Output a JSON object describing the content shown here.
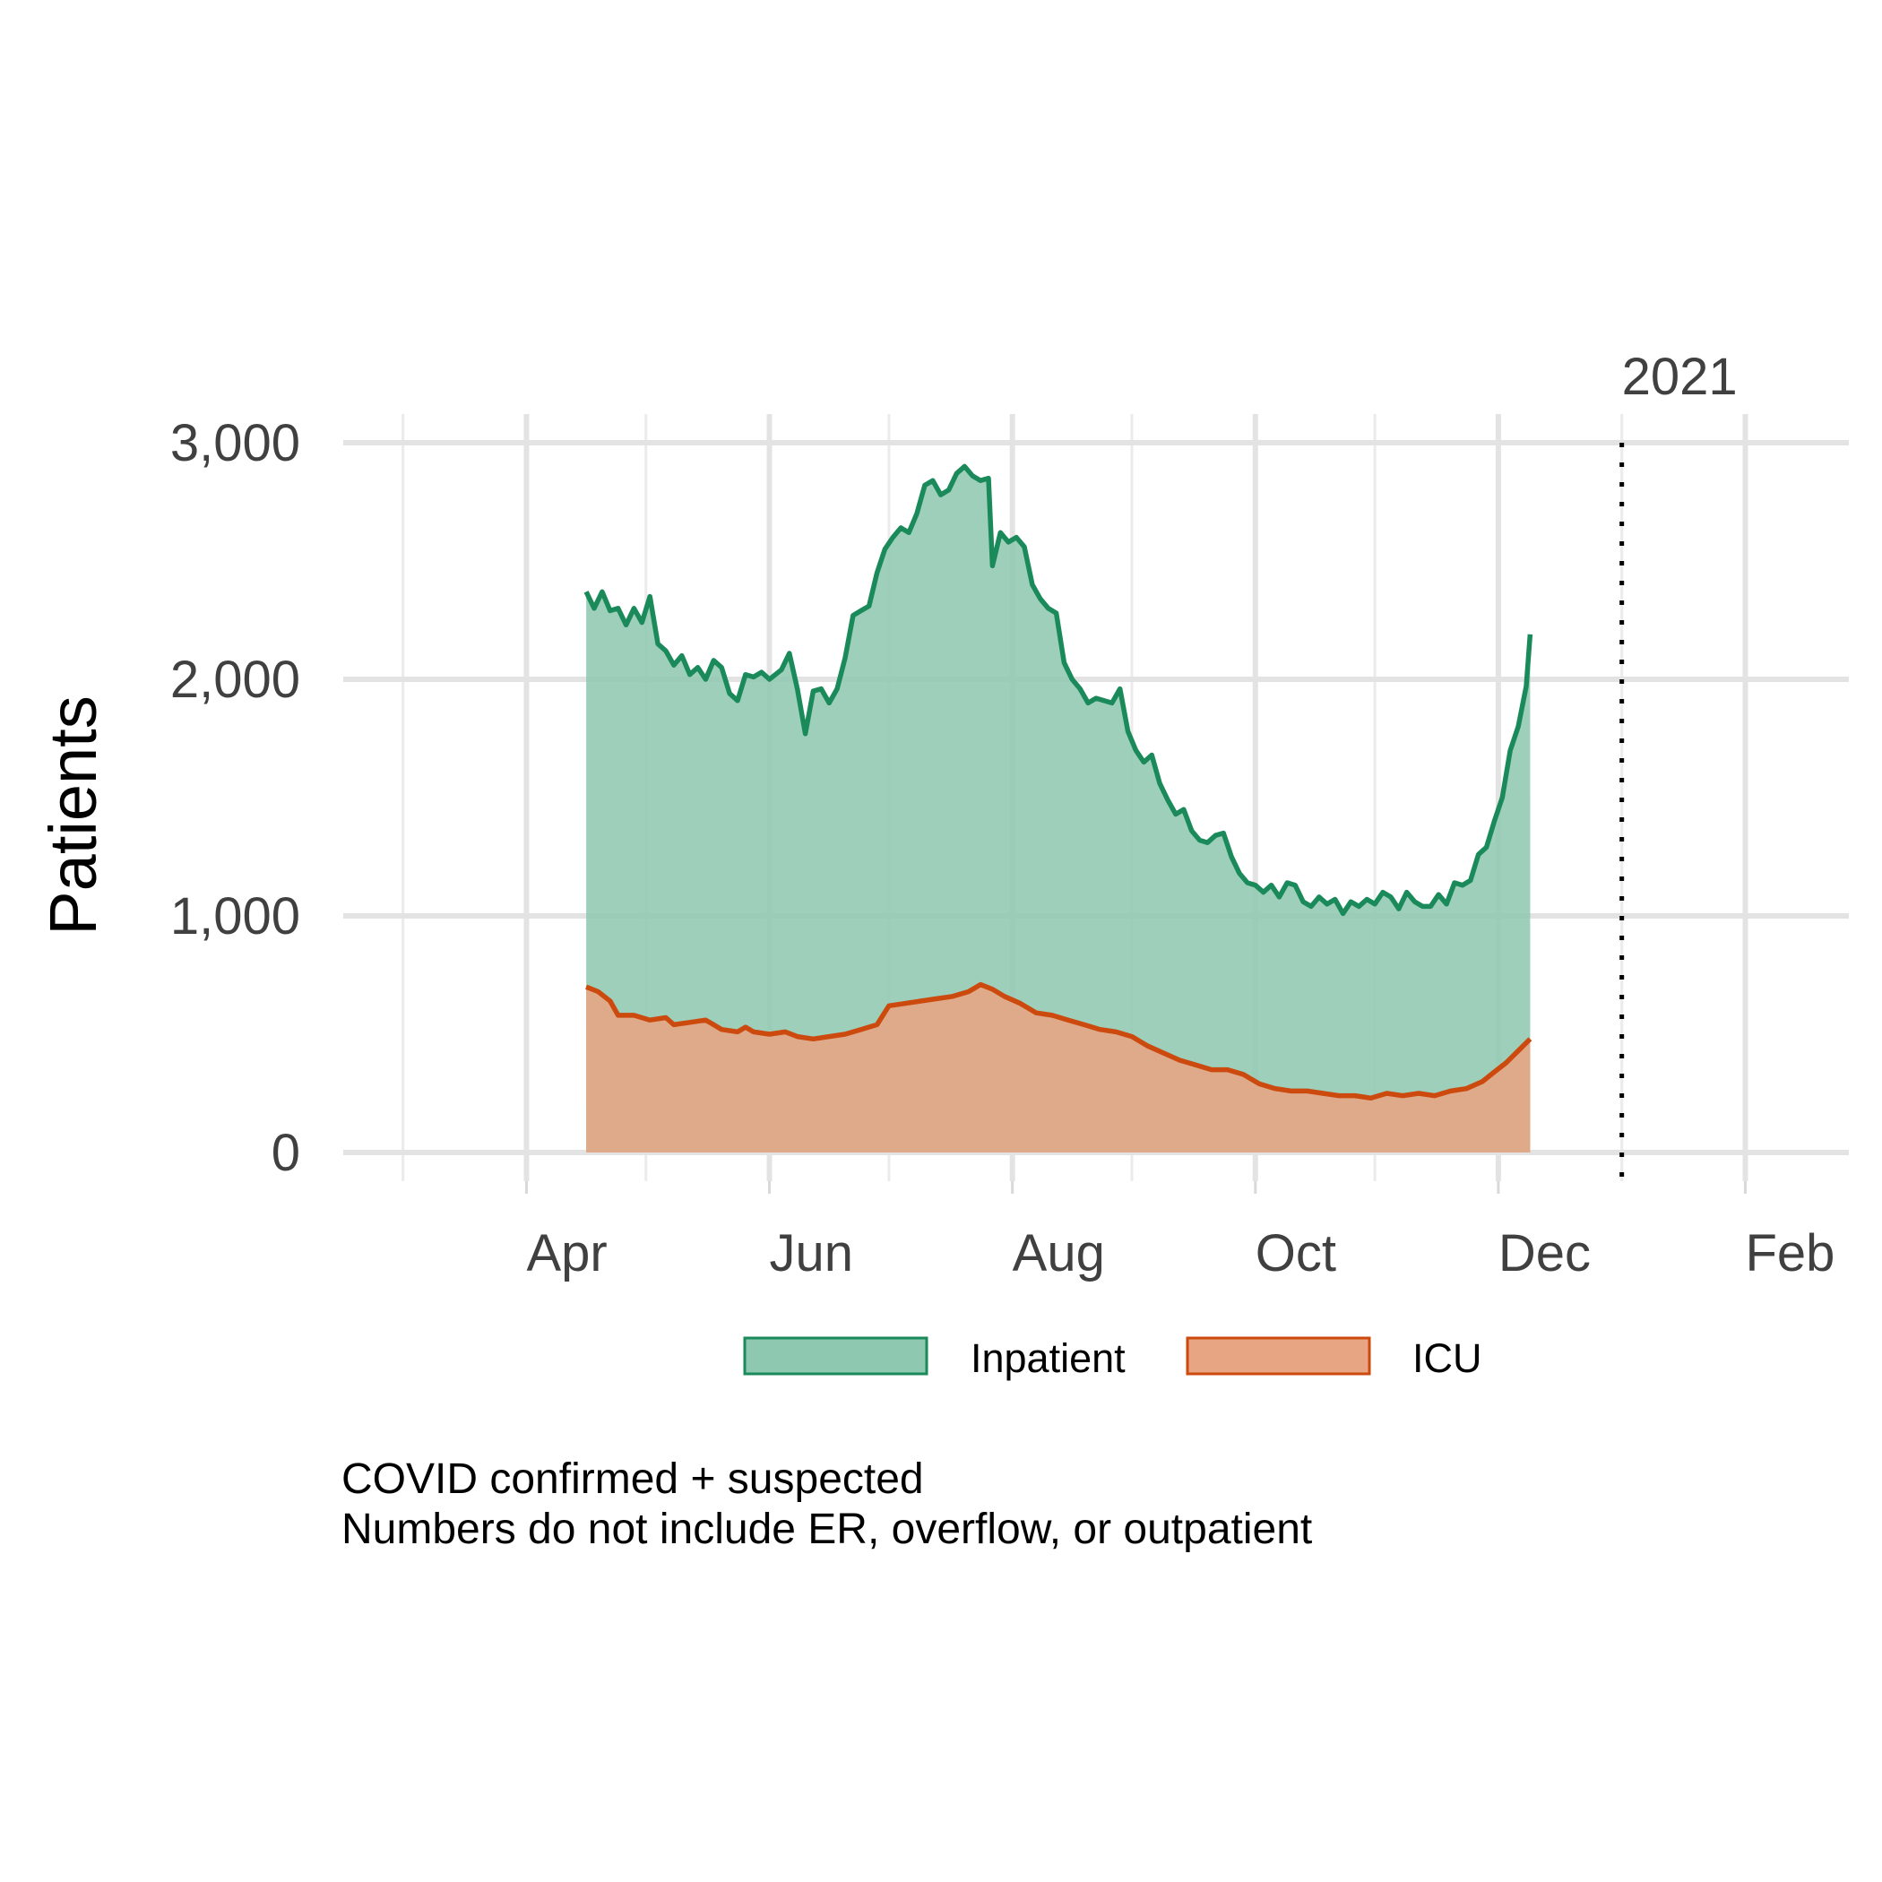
{
  "chart_data": {
    "type": "area",
    "ylabel": "Patients",
    "yticks": [
      0,
      1000,
      2000,
      3000
    ],
    "ytick_labels": [
      "0",
      "1,000",
      "2,000",
      "3,000"
    ],
    "ylim": [
      0,
      3000
    ],
    "xlim": [
      "2020-02-15",
      "2021-02-27"
    ],
    "xtick_dates": [
      "2020-04-01",
      "2020-06-01",
      "2020-08-01",
      "2020-10-01",
      "2020-12-01",
      "2021-02-01"
    ],
    "xtick_labels": [
      "Apr",
      "Jun",
      "Aug",
      "Oct",
      "Dec",
      "Feb"
    ],
    "grid": true,
    "annotation": {
      "label": "2021",
      "date": "2021-01-01",
      "style": "dotted-vertical-line"
    },
    "legend": {
      "position": "bottom"
    },
    "series": [
      {
        "name": "Inpatient",
        "color": "#1b8a5a",
        "fill": "#8fc8b0",
        "points": [
          [
            "2020-04-16",
            2370
          ],
          [
            "2020-04-18",
            2300
          ],
          [
            "2020-04-20",
            2370
          ],
          [
            "2020-04-22",
            2290
          ],
          [
            "2020-04-24",
            2300
          ],
          [
            "2020-04-26",
            2230
          ],
          [
            "2020-04-28",
            2300
          ],
          [
            "2020-04-30",
            2240
          ],
          [
            "2020-05-02",
            2350
          ],
          [
            "2020-05-04",
            2150
          ],
          [
            "2020-05-06",
            2120
          ],
          [
            "2020-05-08",
            2060
          ],
          [
            "2020-05-10",
            2100
          ],
          [
            "2020-05-12",
            2020
          ],
          [
            "2020-05-14",
            2050
          ],
          [
            "2020-05-16",
            2000
          ],
          [
            "2020-05-18",
            2080
          ],
          [
            "2020-05-20",
            2050
          ],
          [
            "2020-05-22",
            1940
          ],
          [
            "2020-05-24",
            1910
          ],
          [
            "2020-05-26",
            2020
          ],
          [
            "2020-05-28",
            2010
          ],
          [
            "2020-05-30",
            2030
          ],
          [
            "2020-06-01",
            2000
          ],
          [
            "2020-06-04",
            2040
          ],
          [
            "2020-06-06",
            2110
          ],
          [
            "2020-06-08",
            1960
          ],
          [
            "2020-06-10",
            1770
          ],
          [
            "2020-06-12",
            1950
          ],
          [
            "2020-06-14",
            1960
          ],
          [
            "2020-06-16",
            1900
          ],
          [
            "2020-06-18",
            1960
          ],
          [
            "2020-06-20",
            2090
          ],
          [
            "2020-06-22",
            2270
          ],
          [
            "2020-06-24",
            2290
          ],
          [
            "2020-06-26",
            2310
          ],
          [
            "2020-06-28",
            2450
          ],
          [
            "2020-06-30",
            2550
          ],
          [
            "2020-07-02",
            2600
          ],
          [
            "2020-07-04",
            2640
          ],
          [
            "2020-07-06",
            2620
          ],
          [
            "2020-07-08",
            2700
          ],
          [
            "2020-07-10",
            2820
          ],
          [
            "2020-07-12",
            2840
          ],
          [
            "2020-07-14",
            2780
          ],
          [
            "2020-07-16",
            2800
          ],
          [
            "2020-07-18",
            2870
          ],
          [
            "2020-07-20",
            2900
          ],
          [
            "2020-07-22",
            2860
          ],
          [
            "2020-07-24",
            2840
          ],
          [
            "2020-07-26",
            2850
          ],
          [
            "2020-07-27",
            2480
          ],
          [
            "2020-07-29",
            2620
          ],
          [
            "2020-07-31",
            2580
          ],
          [
            "2020-08-02",
            2600
          ],
          [
            "2020-08-04",
            2560
          ],
          [
            "2020-08-06",
            2400
          ],
          [
            "2020-08-08",
            2340
          ],
          [
            "2020-08-10",
            2300
          ],
          [
            "2020-08-12",
            2280
          ],
          [
            "2020-08-14",
            2070
          ],
          [
            "2020-08-16",
            2000
          ],
          [
            "2020-08-18",
            1960
          ],
          [
            "2020-08-20",
            1900
          ],
          [
            "2020-08-22",
            1920
          ],
          [
            "2020-08-24",
            1910
          ],
          [
            "2020-08-26",
            1900
          ],
          [
            "2020-08-28",
            1960
          ],
          [
            "2020-08-30",
            1780
          ],
          [
            "2020-09-01",
            1700
          ],
          [
            "2020-09-03",
            1650
          ],
          [
            "2020-09-05",
            1680
          ],
          [
            "2020-09-07",
            1560
          ],
          [
            "2020-09-09",
            1490
          ],
          [
            "2020-09-11",
            1430
          ],
          [
            "2020-09-13",
            1450
          ],
          [
            "2020-09-15",
            1360
          ],
          [
            "2020-09-17",
            1320
          ],
          [
            "2020-09-19",
            1310
          ],
          [
            "2020-09-21",
            1340
          ],
          [
            "2020-09-23",
            1350
          ],
          [
            "2020-09-25",
            1250
          ],
          [
            "2020-09-27",
            1180
          ],
          [
            "2020-09-29",
            1140
          ],
          [
            "2020-10-01",
            1130
          ],
          [
            "2020-10-03",
            1100
          ],
          [
            "2020-10-05",
            1130
          ],
          [
            "2020-10-07",
            1080
          ],
          [
            "2020-10-09",
            1140
          ],
          [
            "2020-10-11",
            1130
          ],
          [
            "2020-10-13",
            1060
          ],
          [
            "2020-10-15",
            1040
          ],
          [
            "2020-10-17",
            1080
          ],
          [
            "2020-10-19",
            1050
          ],
          [
            "2020-10-21",
            1070
          ],
          [
            "2020-10-23",
            1010
          ],
          [
            "2020-10-25",
            1060
          ],
          [
            "2020-10-27",
            1040
          ],
          [
            "2020-10-29",
            1070
          ],
          [
            "2020-10-31",
            1050
          ],
          [
            "2020-11-02",
            1100
          ],
          [
            "2020-11-04",
            1080
          ],
          [
            "2020-11-06",
            1030
          ],
          [
            "2020-11-08",
            1100
          ],
          [
            "2020-11-10",
            1060
          ],
          [
            "2020-11-12",
            1040
          ],
          [
            "2020-11-14",
            1040
          ],
          [
            "2020-11-16",
            1090
          ],
          [
            "2020-11-18",
            1050
          ],
          [
            "2020-11-20",
            1140
          ],
          [
            "2020-11-22",
            1130
          ],
          [
            "2020-11-24",
            1150
          ],
          [
            "2020-11-26",
            1260
          ],
          [
            "2020-11-28",
            1290
          ],
          [
            "2020-11-30",
            1400
          ],
          [
            "2020-12-02",
            1500
          ],
          [
            "2020-12-04",
            1700
          ],
          [
            "2020-12-06",
            1800
          ],
          [
            "2020-12-08",
            1970
          ],
          [
            "2020-12-09",
            2190
          ]
        ]
      },
      {
        "name": "ICU",
        "color": "#cc4a0e",
        "fill": "#e7a583",
        "points": [
          [
            "2020-04-16",
            700
          ],
          [
            "2020-04-19",
            680
          ],
          [
            "2020-04-22",
            640
          ],
          [
            "2020-04-24",
            580
          ],
          [
            "2020-04-28",
            580
          ],
          [
            "2020-05-02",
            560
          ],
          [
            "2020-05-06",
            570
          ],
          [
            "2020-05-08",
            540
          ],
          [
            "2020-05-12",
            550
          ],
          [
            "2020-05-16",
            560
          ],
          [
            "2020-05-18",
            540
          ],
          [
            "2020-05-20",
            520
          ],
          [
            "2020-05-24",
            510
          ],
          [
            "2020-05-26",
            530
          ],
          [
            "2020-05-28",
            510
          ],
          [
            "2020-06-01",
            500
          ],
          [
            "2020-06-05",
            510
          ],
          [
            "2020-06-08",
            490
          ],
          [
            "2020-06-12",
            480
          ],
          [
            "2020-06-16",
            490
          ],
          [
            "2020-06-20",
            500
          ],
          [
            "2020-06-24",
            520
          ],
          [
            "2020-06-28",
            540
          ],
          [
            "2020-07-01",
            620
          ],
          [
            "2020-07-05",
            630
          ],
          [
            "2020-07-09",
            640
          ],
          [
            "2020-07-13",
            650
          ],
          [
            "2020-07-17",
            660
          ],
          [
            "2020-07-21",
            680
          ],
          [
            "2020-07-24",
            710
          ],
          [
            "2020-07-27",
            690
          ],
          [
            "2020-07-30",
            660
          ],
          [
            "2020-08-03",
            630
          ],
          [
            "2020-08-07",
            590
          ],
          [
            "2020-08-11",
            580
          ],
          [
            "2020-08-15",
            560
          ],
          [
            "2020-08-19",
            540
          ],
          [
            "2020-08-23",
            520
          ],
          [
            "2020-08-27",
            510
          ],
          [
            "2020-08-31",
            490
          ],
          [
            "2020-09-04",
            450
          ],
          [
            "2020-09-08",
            420
          ],
          [
            "2020-09-12",
            390
          ],
          [
            "2020-09-16",
            370
          ],
          [
            "2020-09-20",
            350
          ],
          [
            "2020-09-24",
            350
          ],
          [
            "2020-09-28",
            330
          ],
          [
            "2020-10-02",
            290
          ],
          [
            "2020-10-06",
            270
          ],
          [
            "2020-10-10",
            260
          ],
          [
            "2020-10-14",
            260
          ],
          [
            "2020-10-18",
            250
          ],
          [
            "2020-10-22",
            240
          ],
          [
            "2020-10-26",
            240
          ],
          [
            "2020-10-30",
            230
          ],
          [
            "2020-11-03",
            250
          ],
          [
            "2020-11-07",
            240
          ],
          [
            "2020-11-11",
            250
          ],
          [
            "2020-11-15",
            240
          ],
          [
            "2020-11-19",
            260
          ],
          [
            "2020-11-23",
            270
          ],
          [
            "2020-11-27",
            300
          ],
          [
            "2020-11-30",
            340
          ],
          [
            "2020-12-03",
            380
          ],
          [
            "2020-12-06",
            430
          ],
          [
            "2020-12-09",
            480
          ]
        ]
      }
    ],
    "caption": [
      "COVID confirmed + suspected",
      "Numbers do not include ER, overflow, or outpatient"
    ]
  }
}
